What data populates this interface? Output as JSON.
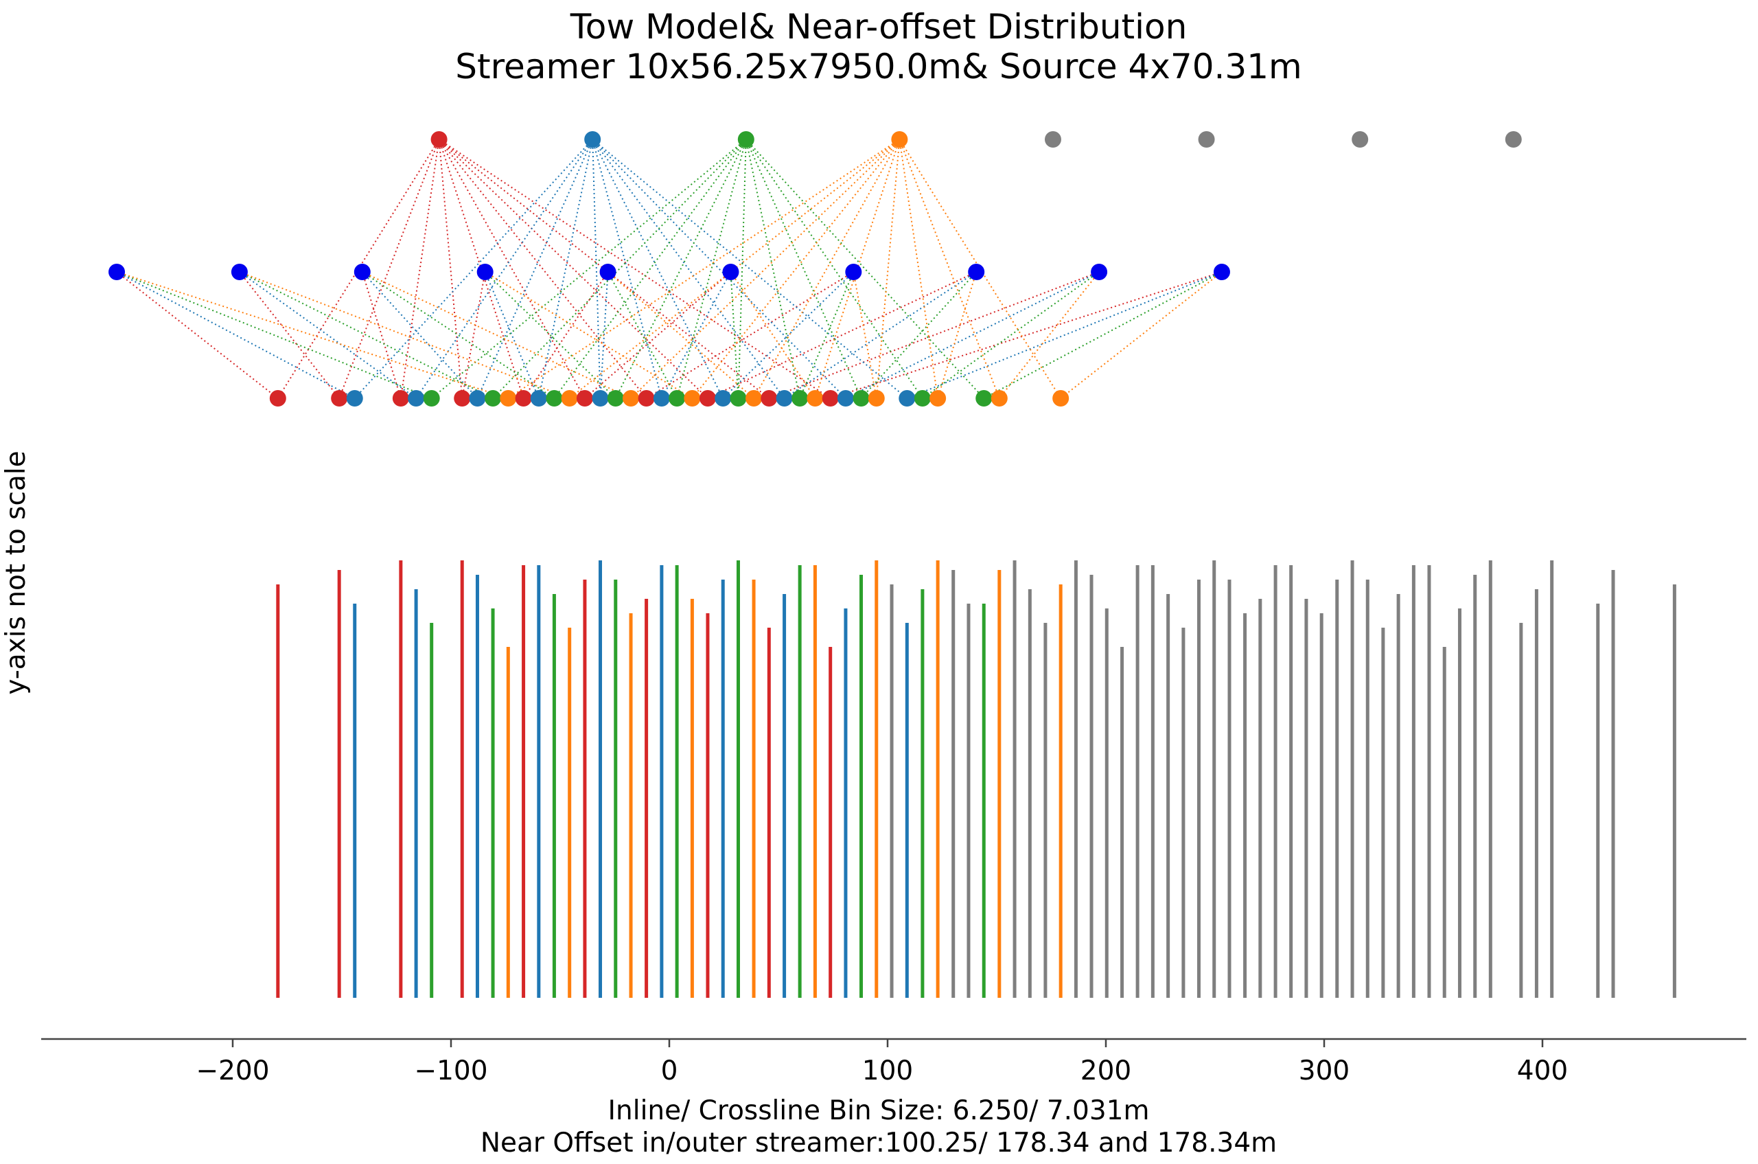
{
  "chart_data": {
    "type": "scatter",
    "title": [
      "Tow Model& Near-offset Distribution",
      "Streamer 10x56.25x7950.0m& Source 4x70.31m"
    ],
    "xlabel": [
      "Inline/ Crossline Bin Size: 6.250/ 7.031m",
      "Near Offset in/outer streamer:100.25/ 178.34 and 178.34m"
    ],
    "ylabel": "y-axis not to scale",
    "xlim": [
      -290,
      492
    ],
    "x_ticks": [
      -200,
      -100,
      0,
      100,
      200,
      300,
      400
    ],
    "x_tick_labels": [
      "−200",
      "−100",
      "0",
      "100",
      "200",
      "300",
      "400"
    ],
    "grid": false,
    "colors": {
      "red": "#d62728",
      "blue": "#1f77b4",
      "green": "#2ca02c",
      "orange": "#ff7f0e",
      "gray": "#7f7f7f",
      "streamer": "#0000ee"
    },
    "sources": [
      {
        "x": -105.47,
        "color": "red"
      },
      {
        "x": -35.16,
        "color": "blue"
      },
      {
        "x": 35.16,
        "color": "green"
      },
      {
        "x": 105.47,
        "color": "orange"
      },
      {
        "x": 175.78,
        "color": "gray"
      },
      {
        "x": 246.09,
        "color": "gray"
      },
      {
        "x": 316.41,
        "color": "gray"
      },
      {
        "x": 386.72,
        "color": "gray"
      }
    ],
    "streamers": [
      -253.13,
      -196.88,
      -140.63,
      -84.38,
      -28.13,
      28.13,
      84.38,
      140.63,
      196.88,
      253.13
    ],
    "midpoints": [
      {
        "x": -179.3,
        "color": "red"
      },
      {
        "x": -151.2,
        "color": "red"
      },
      {
        "x": -144.1,
        "color": "blue"
      },
      {
        "x": -123.0,
        "color": "red"
      },
      {
        "x": -116.0,
        "color": "blue"
      },
      {
        "x": -108.9,
        "color": "green"
      },
      {
        "x": -94.9,
        "color": "red"
      },
      {
        "x": -87.9,
        "color": "blue"
      },
      {
        "x": -80.8,
        "color": "green"
      },
      {
        "x": -73.8,
        "color": "orange"
      },
      {
        "x": -66.8,
        "color": "red"
      },
      {
        "x": -59.8,
        "color": "blue"
      },
      {
        "x": -52.7,
        "color": "green"
      },
      {
        "x": -45.7,
        "color": "orange"
      },
      {
        "x": -38.7,
        "color": "red"
      },
      {
        "x": -31.6,
        "color": "blue"
      },
      {
        "x": -24.6,
        "color": "green"
      },
      {
        "x": -17.6,
        "color": "orange"
      },
      {
        "x": -10.5,
        "color": "red"
      },
      {
        "x": -3.5,
        "color": "blue"
      },
      {
        "x": 3.5,
        "color": "green"
      },
      {
        "x": 10.5,
        "color": "orange"
      },
      {
        "x": 17.6,
        "color": "red"
      },
      {
        "x": 24.6,
        "color": "blue"
      },
      {
        "x": 31.6,
        "color": "green"
      },
      {
        "x": 38.7,
        "color": "orange"
      },
      {
        "x": 45.7,
        "color": "red"
      },
      {
        "x": 52.7,
        "color": "blue"
      },
      {
        "x": 59.8,
        "color": "green"
      },
      {
        "x": 66.8,
        "color": "orange"
      },
      {
        "x": 73.8,
        "color": "red"
      },
      {
        "x": 80.8,
        "color": "blue"
      },
      {
        "x": 87.9,
        "color": "green"
      },
      {
        "x": 94.9,
        "color": "orange"
      },
      {
        "x": 108.9,
        "color": "blue"
      },
      {
        "x": 116.0,
        "color": "green"
      },
      {
        "x": 123.0,
        "color": "orange"
      },
      {
        "x": 144.1,
        "color": "green"
      },
      {
        "x": 151.2,
        "color": "orange"
      },
      {
        "x": 179.3,
        "color": "orange"
      }
    ],
    "bars": [
      {
        "x": -179.3,
        "h": 0.86,
        "color": "red"
      },
      {
        "x": -151.2,
        "h": 0.89,
        "color": "red"
      },
      {
        "x": -144.1,
        "h": 0.82,
        "color": "blue"
      },
      {
        "x": -123.0,
        "h": 0.91,
        "color": "red"
      },
      {
        "x": -116.0,
        "h": 0.85,
        "color": "blue"
      },
      {
        "x": -108.9,
        "h": 0.78,
        "color": "green"
      },
      {
        "x": -94.9,
        "h": 0.91,
        "color": "red"
      },
      {
        "x": -87.9,
        "h": 0.88,
        "color": "blue"
      },
      {
        "x": -80.8,
        "h": 0.81,
        "color": "green"
      },
      {
        "x": -73.8,
        "h": 0.73,
        "color": "orange"
      },
      {
        "x": -66.8,
        "h": 0.9,
        "color": "red"
      },
      {
        "x": -59.8,
        "h": 0.9,
        "color": "blue"
      },
      {
        "x": -52.7,
        "h": 0.84,
        "color": "green"
      },
      {
        "x": -45.7,
        "h": 0.77,
        "color": "orange"
      },
      {
        "x": -38.7,
        "h": 0.87,
        "color": "red"
      },
      {
        "x": -31.6,
        "h": 0.91,
        "color": "blue"
      },
      {
        "x": -24.6,
        "h": 0.87,
        "color": "green"
      },
      {
        "x": -17.6,
        "h": 0.8,
        "color": "orange"
      },
      {
        "x": -10.5,
        "h": 0.83,
        "color": "red"
      },
      {
        "x": -3.5,
        "h": 0.9,
        "color": "blue"
      },
      {
        "x": 3.5,
        "h": 0.9,
        "color": "green"
      },
      {
        "x": 10.5,
        "h": 0.83,
        "color": "orange"
      },
      {
        "x": 17.6,
        "h": 0.8,
        "color": "red"
      },
      {
        "x": 24.6,
        "h": 0.87,
        "color": "blue"
      },
      {
        "x": 31.6,
        "h": 0.91,
        "color": "green"
      },
      {
        "x": 38.7,
        "h": 0.87,
        "color": "orange"
      },
      {
        "x": 45.7,
        "h": 0.77,
        "color": "red"
      },
      {
        "x": 52.7,
        "h": 0.84,
        "color": "blue"
      },
      {
        "x": 59.8,
        "h": 0.9,
        "color": "green"
      },
      {
        "x": 66.8,
        "h": 0.9,
        "color": "orange"
      },
      {
        "x": 73.8,
        "h": 0.73,
        "color": "red"
      },
      {
        "x": 80.8,
        "h": 0.81,
        "color": "blue"
      },
      {
        "x": 87.9,
        "h": 0.88,
        "color": "green"
      },
      {
        "x": 94.9,
        "h": 0.91,
        "color": "orange"
      },
      {
        "x": 101.9,
        "h": 0.86,
        "color": "gray"
      },
      {
        "x": 108.9,
        "h": 0.78,
        "color": "blue"
      },
      {
        "x": 116.0,
        "h": 0.85,
        "color": "green"
      },
      {
        "x": 123.0,
        "h": 0.91,
        "color": "orange"
      },
      {
        "x": 130.1,
        "h": 0.89,
        "color": "gray"
      },
      {
        "x": 137.1,
        "h": 0.82,
        "color": "gray"
      },
      {
        "x": 144.1,
        "h": 0.82,
        "color": "green"
      },
      {
        "x": 151.2,
        "h": 0.89,
        "color": "orange"
      },
      {
        "x": 158.2,
        "h": 0.91,
        "color": "gray"
      },
      {
        "x": 165.2,
        "h": 0.85,
        "color": "gray"
      },
      {
        "x": 172.3,
        "h": 0.78,
        "color": "gray"
      },
      {
        "x": 179.3,
        "h": 0.86,
        "color": "orange"
      },
      {
        "x": 186.3,
        "h": 0.91,
        "color": "gray"
      },
      {
        "x": 193.4,
        "h": 0.88,
        "color": "gray"
      },
      {
        "x": 200.4,
        "h": 0.81,
        "color": "gray"
      },
      {
        "x": 207.4,
        "h": 0.73,
        "color": "gray"
      },
      {
        "x": 214.5,
        "h": 0.9,
        "color": "gray"
      },
      {
        "x": 221.5,
        "h": 0.9,
        "color": "gray"
      },
      {
        "x": 228.5,
        "h": 0.84,
        "color": "gray"
      },
      {
        "x": 235.5,
        "h": 0.77,
        "color": "gray"
      },
      {
        "x": 242.6,
        "h": 0.87,
        "color": "gray"
      },
      {
        "x": 249.6,
        "h": 0.91,
        "color": "gray"
      },
      {
        "x": 256.6,
        "h": 0.87,
        "color": "gray"
      },
      {
        "x": 263.7,
        "h": 0.8,
        "color": "gray"
      },
      {
        "x": 270.7,
        "h": 0.83,
        "color": "gray"
      },
      {
        "x": 277.7,
        "h": 0.9,
        "color": "gray"
      },
      {
        "x": 284.8,
        "h": 0.9,
        "color": "gray"
      },
      {
        "x": 291.8,
        "h": 0.83,
        "color": "gray"
      },
      {
        "x": 298.8,
        "h": 0.8,
        "color": "gray"
      },
      {
        "x": 305.9,
        "h": 0.87,
        "color": "gray"
      },
      {
        "x": 312.9,
        "h": 0.91,
        "color": "gray"
      },
      {
        "x": 319.9,
        "h": 0.87,
        "color": "gray"
      },
      {
        "x": 327.0,
        "h": 0.77,
        "color": "gray"
      },
      {
        "x": 334.0,
        "h": 0.84,
        "color": "gray"
      },
      {
        "x": 341.0,
        "h": 0.9,
        "color": "gray"
      },
      {
        "x": 348.1,
        "h": 0.9,
        "color": "gray"
      },
      {
        "x": 355.1,
        "h": 0.73,
        "color": "gray"
      },
      {
        "x": 362.1,
        "h": 0.81,
        "color": "gray"
      },
      {
        "x": 369.1,
        "h": 0.88,
        "color": "gray"
      },
      {
        "x": 376.2,
        "h": 0.91,
        "color": "gray"
      },
      {
        "x": 390.2,
        "h": 0.78,
        "color": "gray"
      },
      {
        "x": 397.3,
        "h": 0.85,
        "color": "gray"
      },
      {
        "x": 404.3,
        "h": 0.91,
        "color": "gray"
      },
      {
        "x": 425.4,
        "h": 0.82,
        "color": "gray"
      },
      {
        "x": 432.4,
        "h": 0.89,
        "color": "gray"
      },
      {
        "x": 460.5,
        "h": 0.86,
        "color": "gray"
      }
    ]
  }
}
